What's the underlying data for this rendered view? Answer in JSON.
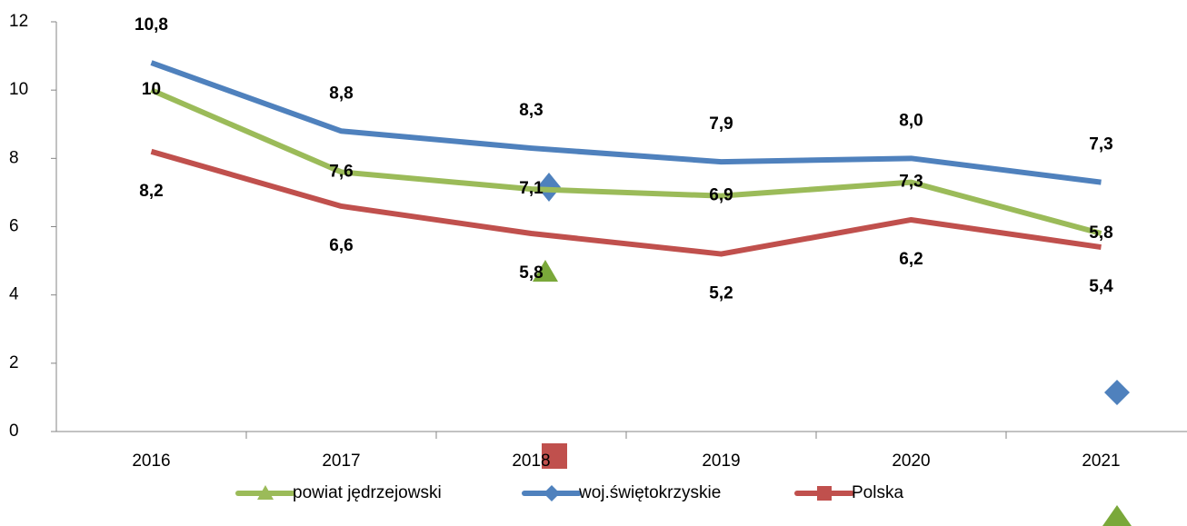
{
  "chart_data": {
    "type": "line",
    "categories": [
      "2016",
      "2017",
      "2018",
      "2019",
      "2020",
      "2021"
    ],
    "series": [
      {
        "name": "powiat jędrzejowski",
        "color": "#9bbb59",
        "marker": "triangle",
        "values": [
          10,
          7.6,
          7.1,
          6.9,
          7.3,
          5.8
        ],
        "value_labels": [
          "10",
          "7,6",
          "7,1",
          "6,9",
          "7,3",
          "5,8"
        ]
      },
      {
        "name": "woj.świętokrzyskie",
        "color": "#4f81bd",
        "marker": "diamond",
        "values": [
          10.8,
          8.8,
          8.3,
          7.9,
          8.0,
          7.3
        ],
        "value_labels": [
          "10,8",
          "8,8",
          "8,3",
          "7,9",
          "8,0",
          "7,3"
        ]
      },
      {
        "name": "Polska",
        "color": "#c0504d",
        "marker": "square",
        "values": [
          8.2,
          6.6,
          5.8,
          5.2,
          6.2,
          5.4
        ],
        "value_labels": [
          "8,2",
          "6,6",
          "5,8",
          "5,2",
          "6,2",
          "5,4"
        ]
      }
    ],
    "ylim": [
      0,
      12
    ],
    "yticks": [
      0,
      2,
      4,
      6,
      8,
      10,
      12
    ],
    "grid": false,
    "legend": "bottom"
  }
}
